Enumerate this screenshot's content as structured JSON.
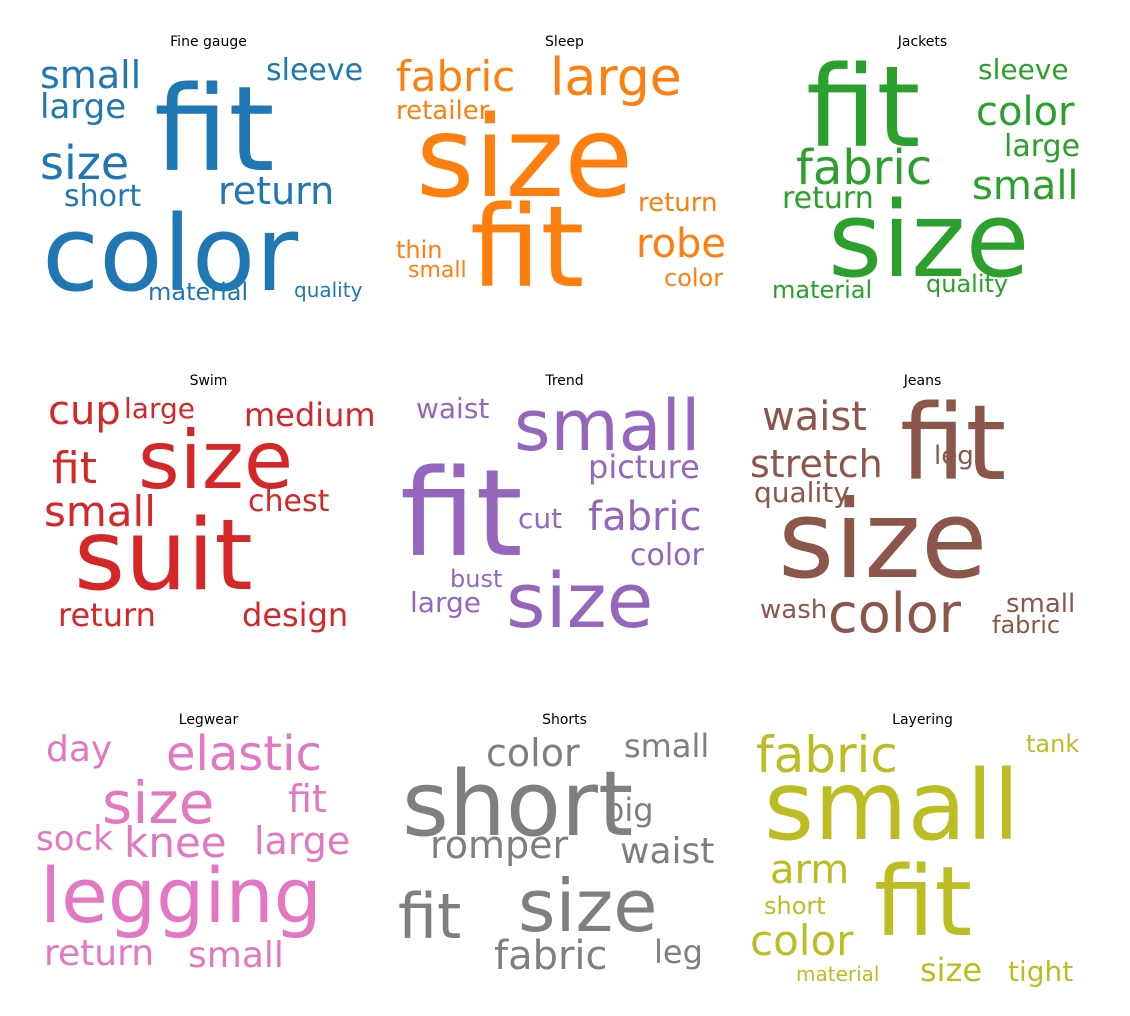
{
  "panels": [
    {
      "title": "Fine gauge",
      "color": "#1f77b4",
      "words": [
        "fit",
        "color",
        "small",
        "sleeve",
        "large",
        "size",
        "return",
        "short",
        "material",
        "quality"
      ]
    },
    {
      "title": "Sleep",
      "color": "#ff7f0e",
      "words": [
        "size",
        "fit",
        "fabric",
        "large",
        "retailer",
        "return",
        "robe",
        "thin",
        "small",
        "color"
      ]
    },
    {
      "title": "Jackets",
      "color": "#2ca02c",
      "words": [
        "fit",
        "size",
        "sleeve",
        "color",
        "large",
        "fabric",
        "small",
        "return",
        "material",
        "quality"
      ]
    },
    {
      "title": "Swim",
      "color": "#d62728",
      "words": [
        "suit",
        "size",
        "cup",
        "large",
        "medium",
        "fit",
        "small",
        "chest",
        "return",
        "design"
      ]
    },
    {
      "title": "Trend",
      "color": "#9467bd",
      "words": [
        "fit",
        "size",
        "small",
        "waist",
        "picture",
        "cut",
        "fabric",
        "color",
        "bust",
        "large"
      ]
    },
    {
      "title": "Jeans",
      "color": "#8c564b",
      "words": [
        "size",
        "fit",
        "color",
        "waist",
        "stretch",
        "leg",
        "quality",
        "wash",
        "small",
        "fabric"
      ]
    },
    {
      "title": "Legwear",
      "color": "#e377c2",
      "words": [
        "legging",
        "size",
        "elastic",
        "day",
        "fit",
        "sock",
        "knee",
        "large",
        "return",
        "small"
      ]
    },
    {
      "title": "Shorts",
      "color": "#7f7f7f",
      "words": [
        "short",
        "size",
        "fit",
        "color",
        "small",
        "big",
        "romper",
        "waist",
        "fabric",
        "leg"
      ]
    },
    {
      "title": "Layering",
      "color": "#bcbd22",
      "words": [
        "small",
        "fit",
        "fabric",
        "tank",
        "arm",
        "short",
        "color",
        "material",
        "size",
        "tight"
      ]
    }
  ]
}
